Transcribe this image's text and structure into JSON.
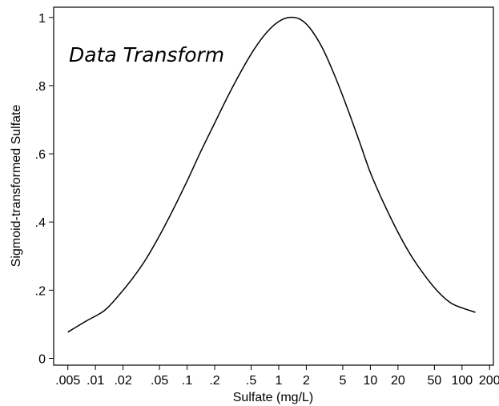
{
  "chart_data": {
    "type": "line",
    "title": "",
    "annotation": "Data Transform",
    "xlabel": "Sulfate (mg/L)",
    "ylabel": "Sigmoid-transformed Sulfate",
    "x_scale": "log",
    "xlim": [
      0.0035,
      220
    ],
    "ylim": [
      -0.02,
      1.03
    ],
    "x_ticks": [
      {
        "value": 0.005,
        "label": ".005"
      },
      {
        "value": 0.01,
        "label": ".01"
      },
      {
        "value": 0.02,
        "label": ".02"
      },
      {
        "value": 0.05,
        "label": ".05"
      },
      {
        "value": 0.1,
        "label": ".1"
      },
      {
        "value": 0.2,
        "label": ".2"
      },
      {
        "value": 0.5,
        "label": ".5"
      },
      {
        "value": 1,
        "label": "1"
      },
      {
        "value": 2,
        "label": "2"
      },
      {
        "value": 5,
        "label": "5"
      },
      {
        "value": 10,
        "label": "10"
      },
      {
        "value": 20,
        "label": "20"
      },
      {
        "value": 50,
        "label": "50"
      },
      {
        "value": 100,
        "label": "100"
      },
      {
        "value": 200,
        "label": "200"
      }
    ],
    "y_ticks": [
      {
        "value": 0,
        "label": "0"
      },
      {
        "value": 0.2,
        "label": ".2"
      },
      {
        "value": 0.4,
        "label": ".4"
      },
      {
        "value": 0.6,
        "label": ".6"
      },
      {
        "value": 0.8,
        "label": ".8"
      },
      {
        "value": 1,
        "label": "1"
      }
    ],
    "grid": false,
    "line_color": "#000000",
    "series": [
      {
        "x": [
          0.005,
          0.008,
          0.0125,
          0.018,
          0.025,
          0.035,
          0.05,
          0.07,
          0.1,
          0.14,
          0.2,
          0.28,
          0.4,
          0.55,
          0.75,
          1.0,
          1.3,
          1.7,
          2.2,
          3.0,
          4.0,
          5.5,
          7.5,
          10,
          14,
          20,
          28,
          40,
          55,
          75,
          100,
          140
        ],
        "y": [
          0.077,
          0.11,
          0.14,
          0.185,
          0.232,
          0.288,
          0.36,
          0.435,
          0.52,
          0.605,
          0.69,
          0.77,
          0.848,
          0.91,
          0.958,
          0.988,
          1.0,
          0.995,
          0.968,
          0.91,
          0.835,
          0.74,
          0.64,
          0.545,
          0.455,
          0.37,
          0.3,
          0.24,
          0.195,
          0.163,
          0.148,
          0.135
        ]
      }
    ]
  }
}
